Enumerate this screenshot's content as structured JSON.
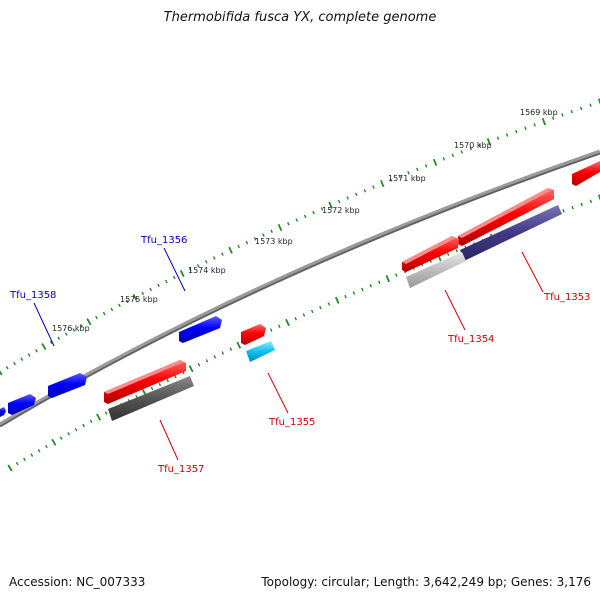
{
  "title": "Thermobifida fusca YX, complete genome",
  "accession": "Accession: NC_007333",
  "topology": "Topology: circular; Length: 3,642,249 bp; Genes: 3,176",
  "colors": {
    "backbone": "#808080",
    "forward_cds": "#ff0000",
    "reverse_cds": "#0000ff",
    "ticks": "#228b22",
    "label_forward": "#cc0000",
    "label_reverse": "#0000cc"
  },
  "scale_labels": [
    "1569 kbp",
    "1570 kbp",
    "1571 kbp",
    "1572 kbp",
    "1573 kbp",
    "1574 kbp",
    "1575 kbp",
    "1576 kbp"
  ],
  "gene_labels": [
    "Tfu_1353",
    "Tfu_1354",
    "Tfu_1355",
    "Tfu_1356",
    "Tfu_1357",
    "Tfu_1358"
  ]
}
